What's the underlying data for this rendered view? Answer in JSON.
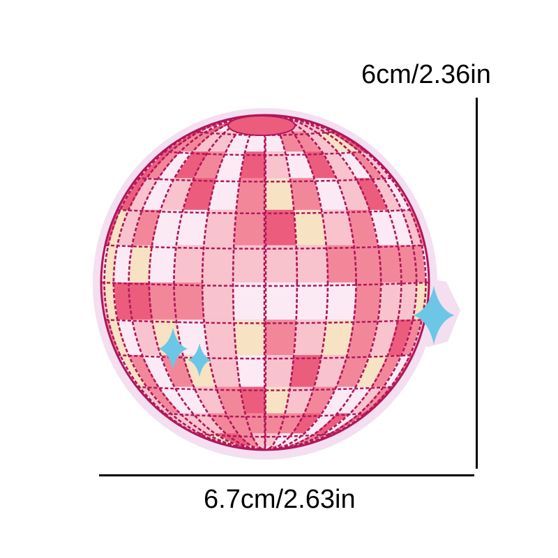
{
  "dimensions": {
    "height_label": "6cm/2.36in",
    "width_label": "6.7cm/2.63in"
  },
  "colors": {
    "background": "#ffffff",
    "patch_border": "#f3dff0",
    "stitch": "#b0175a",
    "tile_pink": "#f3879a",
    "tile_light": "#f9c3ce",
    "tile_white": "#fbeaf4",
    "tile_cream": "#f7e2c4",
    "tile_deep": "#ec5d7d",
    "sparkle": "#6cc6e6",
    "dimension_line": "#000000"
  },
  "icons": [
    "disco-ball-patch",
    "sparkle-icon"
  ]
}
